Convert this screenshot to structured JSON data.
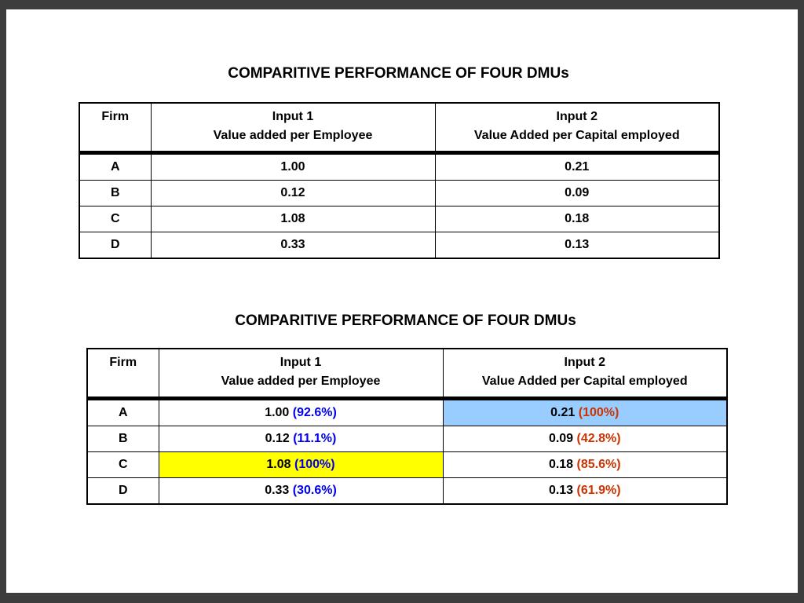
{
  "colors": {
    "pct_input1": "#0000ee",
    "pct_input2": "#cc3300",
    "highlight_yellow": "#ffff00",
    "highlight_blue": "#99ccff"
  },
  "table1": {
    "title": "COMPARITIVE PERFORMANCE OF FOUR DMUs",
    "headers": {
      "firm": "Firm",
      "input1_line1": "Input 1",
      "input1_line2": "Value added per Employee",
      "input2_line1": "Input 2",
      "input2_line2": "Value Added per Capital employed"
    },
    "rows": [
      {
        "firm": "A",
        "input1": "1.00",
        "input2": "0.21"
      },
      {
        "firm": "B",
        "input1": "0.12",
        "input2": "0.09"
      },
      {
        "firm": "C",
        "input1": "1.08",
        "input2": "0.18"
      },
      {
        "firm": "D",
        "input1": "0.33",
        "input2": "0.13"
      }
    ]
  },
  "table2": {
    "title": "COMPARITIVE PERFORMANCE OF FOUR DMUs",
    "headers": {
      "firm": "Firm",
      "input1_line1": "Input 1",
      "input1_line2": "Value added per Employee",
      "input2_line1": "Input 2",
      "input2_line2": "Value Added per Capital employed"
    },
    "rows": [
      {
        "firm": "A",
        "input1": "1.00",
        "input1_pct": "(92.6%)",
        "input2": "0.21",
        "input2_pct": "(100%)"
      },
      {
        "firm": "B",
        "input1": "0.12",
        "input1_pct": "(11.1%)",
        "input2": "0.09",
        "input2_pct": "(42.8%)"
      },
      {
        "firm": "C",
        "input1": "1.08",
        "input1_pct": "(100%)",
        "input2": "0.18",
        "input2_pct": "(85.6%)"
      },
      {
        "firm": "D",
        "input1": "0.33",
        "input1_pct": "(30.6%)",
        "input2": "0.13",
        "input2_pct": "(61.9%)"
      }
    ],
    "highlights": [
      {
        "row": "A",
        "column": "input2",
        "color": "blue"
      },
      {
        "row": "C",
        "column": "input1",
        "color": "yellow"
      }
    ]
  }
}
